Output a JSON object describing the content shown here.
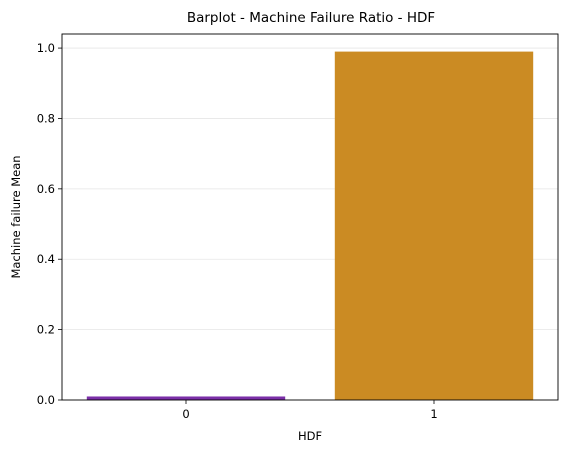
{
  "chart_data": {
    "type": "bar",
    "title": "Barplot - Machine Failure Ratio - HDF",
    "xlabel": "HDF",
    "ylabel": "Machine failure Mean",
    "categories": [
      "0",
      "1"
    ],
    "values": [
      0.01,
      0.99
    ],
    "bar_colors": [
      "#7b2fa8",
      "#cb8b23"
    ],
    "ylim": [
      0,
      1.04
    ],
    "yticks": [
      0.0,
      0.2,
      0.4,
      0.6,
      0.8,
      1.0
    ],
    "ytick_labels": [
      "0.0",
      "0.2",
      "0.4",
      "0.6",
      "0.8",
      "1.0"
    ],
    "grid": "horizontal"
  }
}
